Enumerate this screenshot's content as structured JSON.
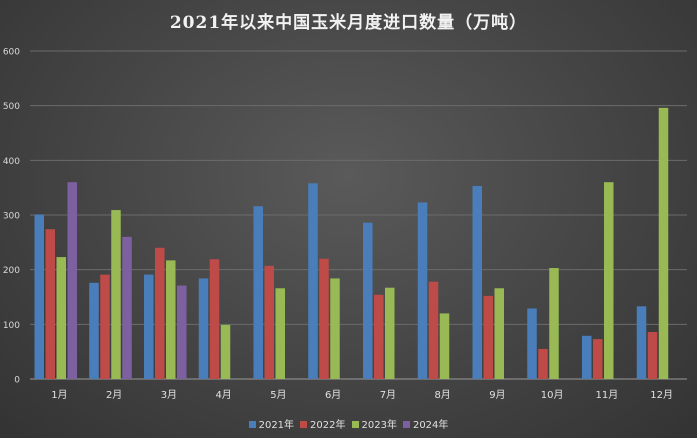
{
  "chart_data": {
    "type": "bar",
    "title": "2021年以来中国玉米月度进口数量（万吨）",
    "categories": [
      "1月",
      "2月",
      "3月",
      "4月",
      "5月",
      "6月",
      "7月",
      "8月",
      "9月",
      "10月",
      "11月",
      "12月"
    ],
    "ylim": [
      0,
      600
    ],
    "yticks": [
      0,
      100,
      200,
      300,
      400,
      500,
      600
    ],
    "grid": true,
    "legend_position": "bottom",
    "series": [
      {
        "name": "2021年",
        "color": "#4a7ebb",
        "values": [
          301,
          176,
          191,
          184,
          316,
          358,
          286,
          323,
          353,
          129,
          79,
          133
        ]
      },
      {
        "name": "2022年",
        "color": "#be4b48",
        "values": [
          274,
          191,
          240,
          219,
          207,
          220,
          154,
          178,
          152,
          55,
          73,
          86
        ]
      },
      {
        "name": "2023年",
        "color": "#98b954",
        "values": [
          223,
          309,
          217,
          99,
          166,
          184,
          167,
          120,
          166,
          203,
          360,
          496
        ]
      },
      {
        "name": "2024年",
        "color": "#7d60a0",
        "values": [
          360,
          260,
          171,
          null,
          null,
          null,
          null,
          null,
          null,
          null,
          null,
          null
        ]
      }
    ]
  }
}
